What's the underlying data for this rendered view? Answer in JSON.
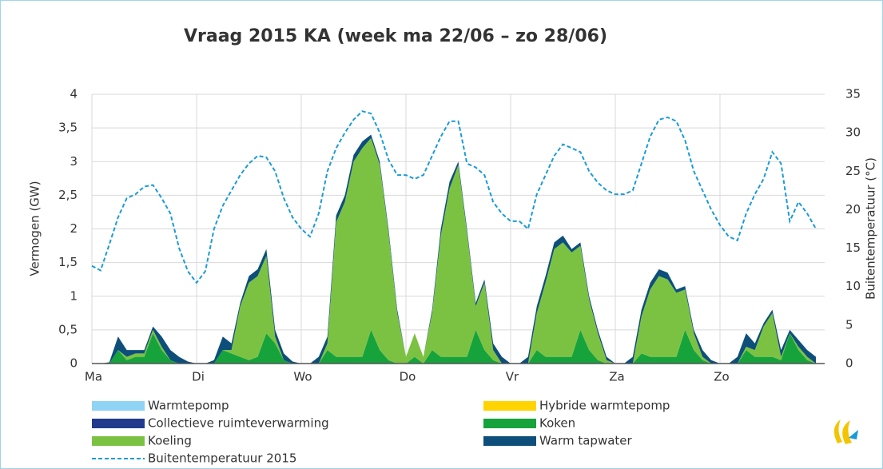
{
  "chart_data": {
    "type": "area",
    "title": "Vraag 2015 KA (week ma 22/06 – zo 28/06)",
    "y_label": "Vermogen (GW)",
    "y2_label": "Buitentemperatuur (°C)",
    "stacked": true,
    "grid": true,
    "x": [
      0,
      2,
      4,
      6,
      8,
      10,
      12,
      14,
      16,
      18,
      20,
      22,
      24,
      26,
      28,
      30,
      32,
      34,
      36,
      38,
      40,
      42,
      44,
      46,
      48,
      50,
      52,
      54,
      56,
      58,
      60,
      62,
      64,
      66,
      68,
      70,
      72,
      74,
      76,
      78,
      80,
      82,
      84,
      86,
      88,
      90,
      92,
      94,
      96,
      98,
      100,
      102,
      104,
      106,
      108,
      110,
      112,
      114,
      116,
      118,
      120,
      122,
      124,
      126,
      128,
      130,
      132,
      134,
      136,
      138,
      140,
      142,
      144,
      146,
      148,
      150,
      152,
      154,
      156,
      158,
      160,
      162,
      164,
      166
    ],
    "xlim": [
      0,
      168
    ],
    "xticks": [
      {
        "value": 0,
        "label": "Ma"
      },
      {
        "value": 24,
        "label": "Di"
      },
      {
        "value": 48,
        "label": "Wo"
      },
      {
        "value": 72,
        "label": "Do"
      },
      {
        "value": 96,
        "label": "Vr"
      },
      {
        "value": 120,
        "label": "Za"
      },
      {
        "value": 144,
        "label": "Zo"
      }
    ],
    "ylim": [
      0,
      4
    ],
    "yticks": [
      0,
      {
        "value": 0.5,
        "label": "0,5"
      },
      1,
      {
        "value": 1.5,
        "label": "1,5"
      },
      2,
      {
        "value": 2.5,
        "label": "2,5"
      },
      3,
      {
        "value": 3.5,
        "label": "3,5"
      },
      4
    ],
    "y2lim": [
      0,
      35
    ],
    "y2ticks": [
      0,
      5,
      10,
      15,
      20,
      25,
      30,
      35
    ],
    "series": [
      {
        "name": "Warmtepomp",
        "color": "#8fd3f5",
        "values": [
          0,
          0,
          0,
          0,
          0,
          0,
          0,
          0,
          0,
          0,
          0,
          0,
          0,
          0,
          0,
          0,
          0,
          0,
          0,
          0,
          0,
          0,
          0,
          0,
          0,
          0,
          0,
          0,
          0,
          0,
          0,
          0,
          0,
          0,
          0,
          0,
          0,
          0,
          0,
          0,
          0,
          0,
          0,
          0,
          0,
          0,
          0,
          0,
          0,
          0,
          0,
          0,
          0,
          0,
          0,
          0,
          0,
          0,
          0,
          0,
          0,
          0,
          0,
          0,
          0,
          0,
          0,
          0,
          0,
          0,
          0,
          0,
          0,
          0,
          0,
          0,
          0,
          0,
          0,
          0,
          0,
          0,
          0,
          0
        ]
      },
      {
        "name": "Hybride warmtepomp",
        "color": "#ffd400",
        "values": [
          0,
          0,
          0,
          0,
          0,
          0,
          0,
          0,
          0,
          0,
          0,
          0,
          0,
          0,
          0,
          0,
          0,
          0,
          0,
          0,
          0,
          0,
          0,
          0,
          0,
          0,
          0,
          0,
          0,
          0,
          0,
          0,
          0,
          0,
          0,
          0,
          0,
          0,
          0,
          0,
          0,
          0,
          0,
          0,
          0,
          0,
          0,
          0,
          0,
          0,
          0,
          0,
          0,
          0,
          0,
          0,
          0,
          0,
          0,
          0,
          0,
          0,
          0,
          0,
          0,
          0,
          0,
          0,
          0,
          0,
          0,
          0,
          0,
          0,
          0,
          0,
          0,
          0,
          0,
          0,
          0,
          0,
          0,
          0
        ]
      },
      {
        "name": "Collectieve ruimteverwarming",
        "color": "#223a8c",
        "values": [
          0,
          0,
          0,
          0,
          0,
          0,
          0,
          0,
          0,
          0,
          0,
          0,
          0,
          0,
          0,
          0,
          0,
          0,
          0,
          0,
          0,
          0,
          0,
          0,
          0,
          0,
          0,
          0,
          0,
          0,
          0,
          0,
          0,
          0,
          0,
          0,
          0,
          0,
          0,
          0,
          0,
          0,
          0,
          0,
          0,
          0,
          0,
          0,
          0,
          0,
          0,
          0,
          0,
          0,
          0,
          0,
          0,
          0,
          0,
          0,
          0,
          0,
          0,
          0,
          0,
          0,
          0,
          0,
          0,
          0,
          0,
          0,
          0,
          0,
          0,
          0,
          0,
          0,
          0,
          0,
          0,
          0,
          0,
          0
        ]
      },
      {
        "name": "Koken",
        "color": "#16a33c",
        "values": [
          0,
          0,
          0,
          0.2,
          0.05,
          0.1,
          0.1,
          0.45,
          0.2,
          0.05,
          0,
          0,
          0,
          0,
          0,
          0.2,
          0.15,
          0.1,
          0.05,
          0.1,
          0.45,
          0.3,
          0.05,
          0,
          0,
          0,
          0,
          0.2,
          0.1,
          0.1,
          0.1,
          0.1,
          0.5,
          0.2,
          0.05,
          0,
          0,
          0.1,
          0,
          0.2,
          0.1,
          0.1,
          0.1,
          0.1,
          0.5,
          0.2,
          0.05,
          0,
          0,
          0,
          0,
          0.2,
          0.1,
          0.1,
          0.1,
          0.1,
          0.5,
          0.2,
          0.05,
          0,
          0,
          0,
          0,
          0.15,
          0.1,
          0.1,
          0.1,
          0.1,
          0.5,
          0.2,
          0.05,
          0,
          0,
          0,
          0,
          0.2,
          0.1,
          0.1,
          0.1,
          0.05,
          0.45,
          0.2,
          0.05,
          0
        ]
      },
      {
        "name": "Koeling",
        "color": "#7cc242",
        "values": [
          0,
          0,
          0,
          0,
          0.05,
          0.05,
          0.05,
          0.05,
          0.05,
          0,
          0,
          0,
          0,
          0,
          0,
          0,
          0.05,
          0.75,
          1.15,
          1.2,
          1.15,
          0.1,
          0,
          0,
          0,
          0,
          0,
          0.1,
          2.0,
          2.3,
          2.9,
          3.1,
          2.85,
          2.75,
          1.9,
          0.75,
          0.1,
          0.35,
          0.1,
          0.55,
          1.8,
          2.5,
          2.85,
          1.85,
          0.35,
          1.0,
          0.15,
          0,
          0,
          0,
          0,
          0.55,
          1.1,
          1.6,
          1.7,
          1.55,
          1.25,
          0.75,
          0.4,
          0.05,
          0,
          0,
          0,
          0.55,
          1.0,
          1.2,
          1.15,
          0.95,
          0.6,
          0.25,
          0.05,
          0,
          0,
          0,
          0,
          0.05,
          0.1,
          0.45,
          0.65,
          0.05,
          0,
          0.05,
          0.05,
          0
        ]
      },
      {
        "name": "Warm tapwater",
        "color": "#0d4f7a",
        "values": [
          0,
          0,
          0.02,
          0.2,
          0.1,
          0.05,
          0.05,
          0.05,
          0.15,
          0.15,
          0.1,
          0.03,
          0,
          0,
          0.05,
          0.2,
          0.1,
          0.05,
          0.1,
          0.1,
          0.1,
          0.1,
          0.1,
          0.03,
          0,
          0,
          0.1,
          0.1,
          0.1,
          0.1,
          0.1,
          0.1,
          0.05,
          0.05,
          0.05,
          0.05,
          0,
          0,
          0,
          0.05,
          0.1,
          0.1,
          0.05,
          0.05,
          0.05,
          0.05,
          0.1,
          0.1,
          0,
          0,
          0.1,
          0.1,
          0.1,
          0.1,
          0.1,
          0.05,
          0.05,
          0.05,
          0.05,
          0.05,
          0,
          0,
          0.1,
          0.1,
          0.1,
          0.1,
          0.1,
          0.05,
          0.05,
          0.05,
          0.1,
          0.05,
          0,
          0,
          0.1,
          0.2,
          0.1,
          0.05,
          0.05,
          0.1,
          0.05,
          0.1,
          0.1,
          0.1
        ]
      },
      {
        "name": "Buitentemperatuur 2015",
        "color": "#1a9bd7",
        "type": "line",
        "line_style": "dashed",
        "axis": "y2",
        "values": [
          12.7,
          12.1,
          15.5,
          19,
          21.5,
          22,
          23,
          23.2,
          21.5,
          19.5,
          15,
          12,
          10.5,
          12,
          17.5,
          20.5,
          22.5,
          24.5,
          26,
          27,
          26.8,
          25,
          21.5,
          19,
          17.5,
          16.5,
          19.5,
          25,
          28,
          30,
          31.7,
          32.8,
          32.5,
          30,
          26.5,
          24.5,
          24.5,
          24,
          24.5,
          27,
          29.5,
          31.5,
          31.5,
          26,
          25.5,
          24.5,
          21,
          19.5,
          18.5,
          18.5,
          17.5,
          22,
          24.5,
          27,
          28.5,
          28,
          27.5,
          25,
          23.5,
          22.5,
          22,
          22,
          22.5,
          26,
          29.5,
          31.7,
          32,
          31.5,
          29,
          25,
          22.5,
          20,
          18,
          16.5,
          16,
          19.5,
          22,
          24,
          27.5,
          26,
          18.5,
          21,
          19.5,
          17.5
        ]
      }
    ]
  }
}
